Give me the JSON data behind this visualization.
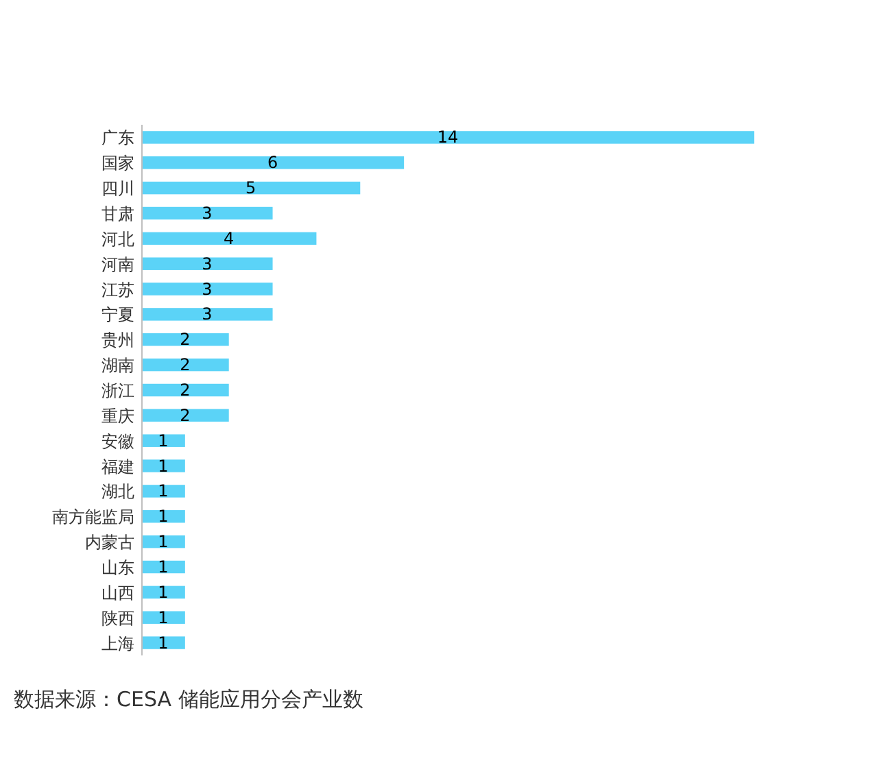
{
  "chart_data": {
    "type": "bar",
    "orientation": "horizontal",
    "categories": [
      "广东",
      "国家",
      "四川",
      "甘肃",
      "河北",
      "河南",
      "江苏",
      "宁夏",
      "贵州",
      "湖南",
      "浙江",
      "重庆",
      "安徽",
      "福建",
      "湖北",
      "南方能监局",
      "内蒙古",
      "山东",
      "山西",
      "陕西",
      "上海"
    ],
    "values": [
      14,
      6,
      5,
      3,
      4,
      3,
      3,
      3,
      2,
      2,
      2,
      2,
      1,
      1,
      1,
      1,
      1,
      1,
      1,
      1,
      1
    ],
    "color": "#5bd3f7",
    "data_labels": true,
    "annotations": [
      "数据来源：CESA 储能应用分会产业数"
    ]
  }
}
